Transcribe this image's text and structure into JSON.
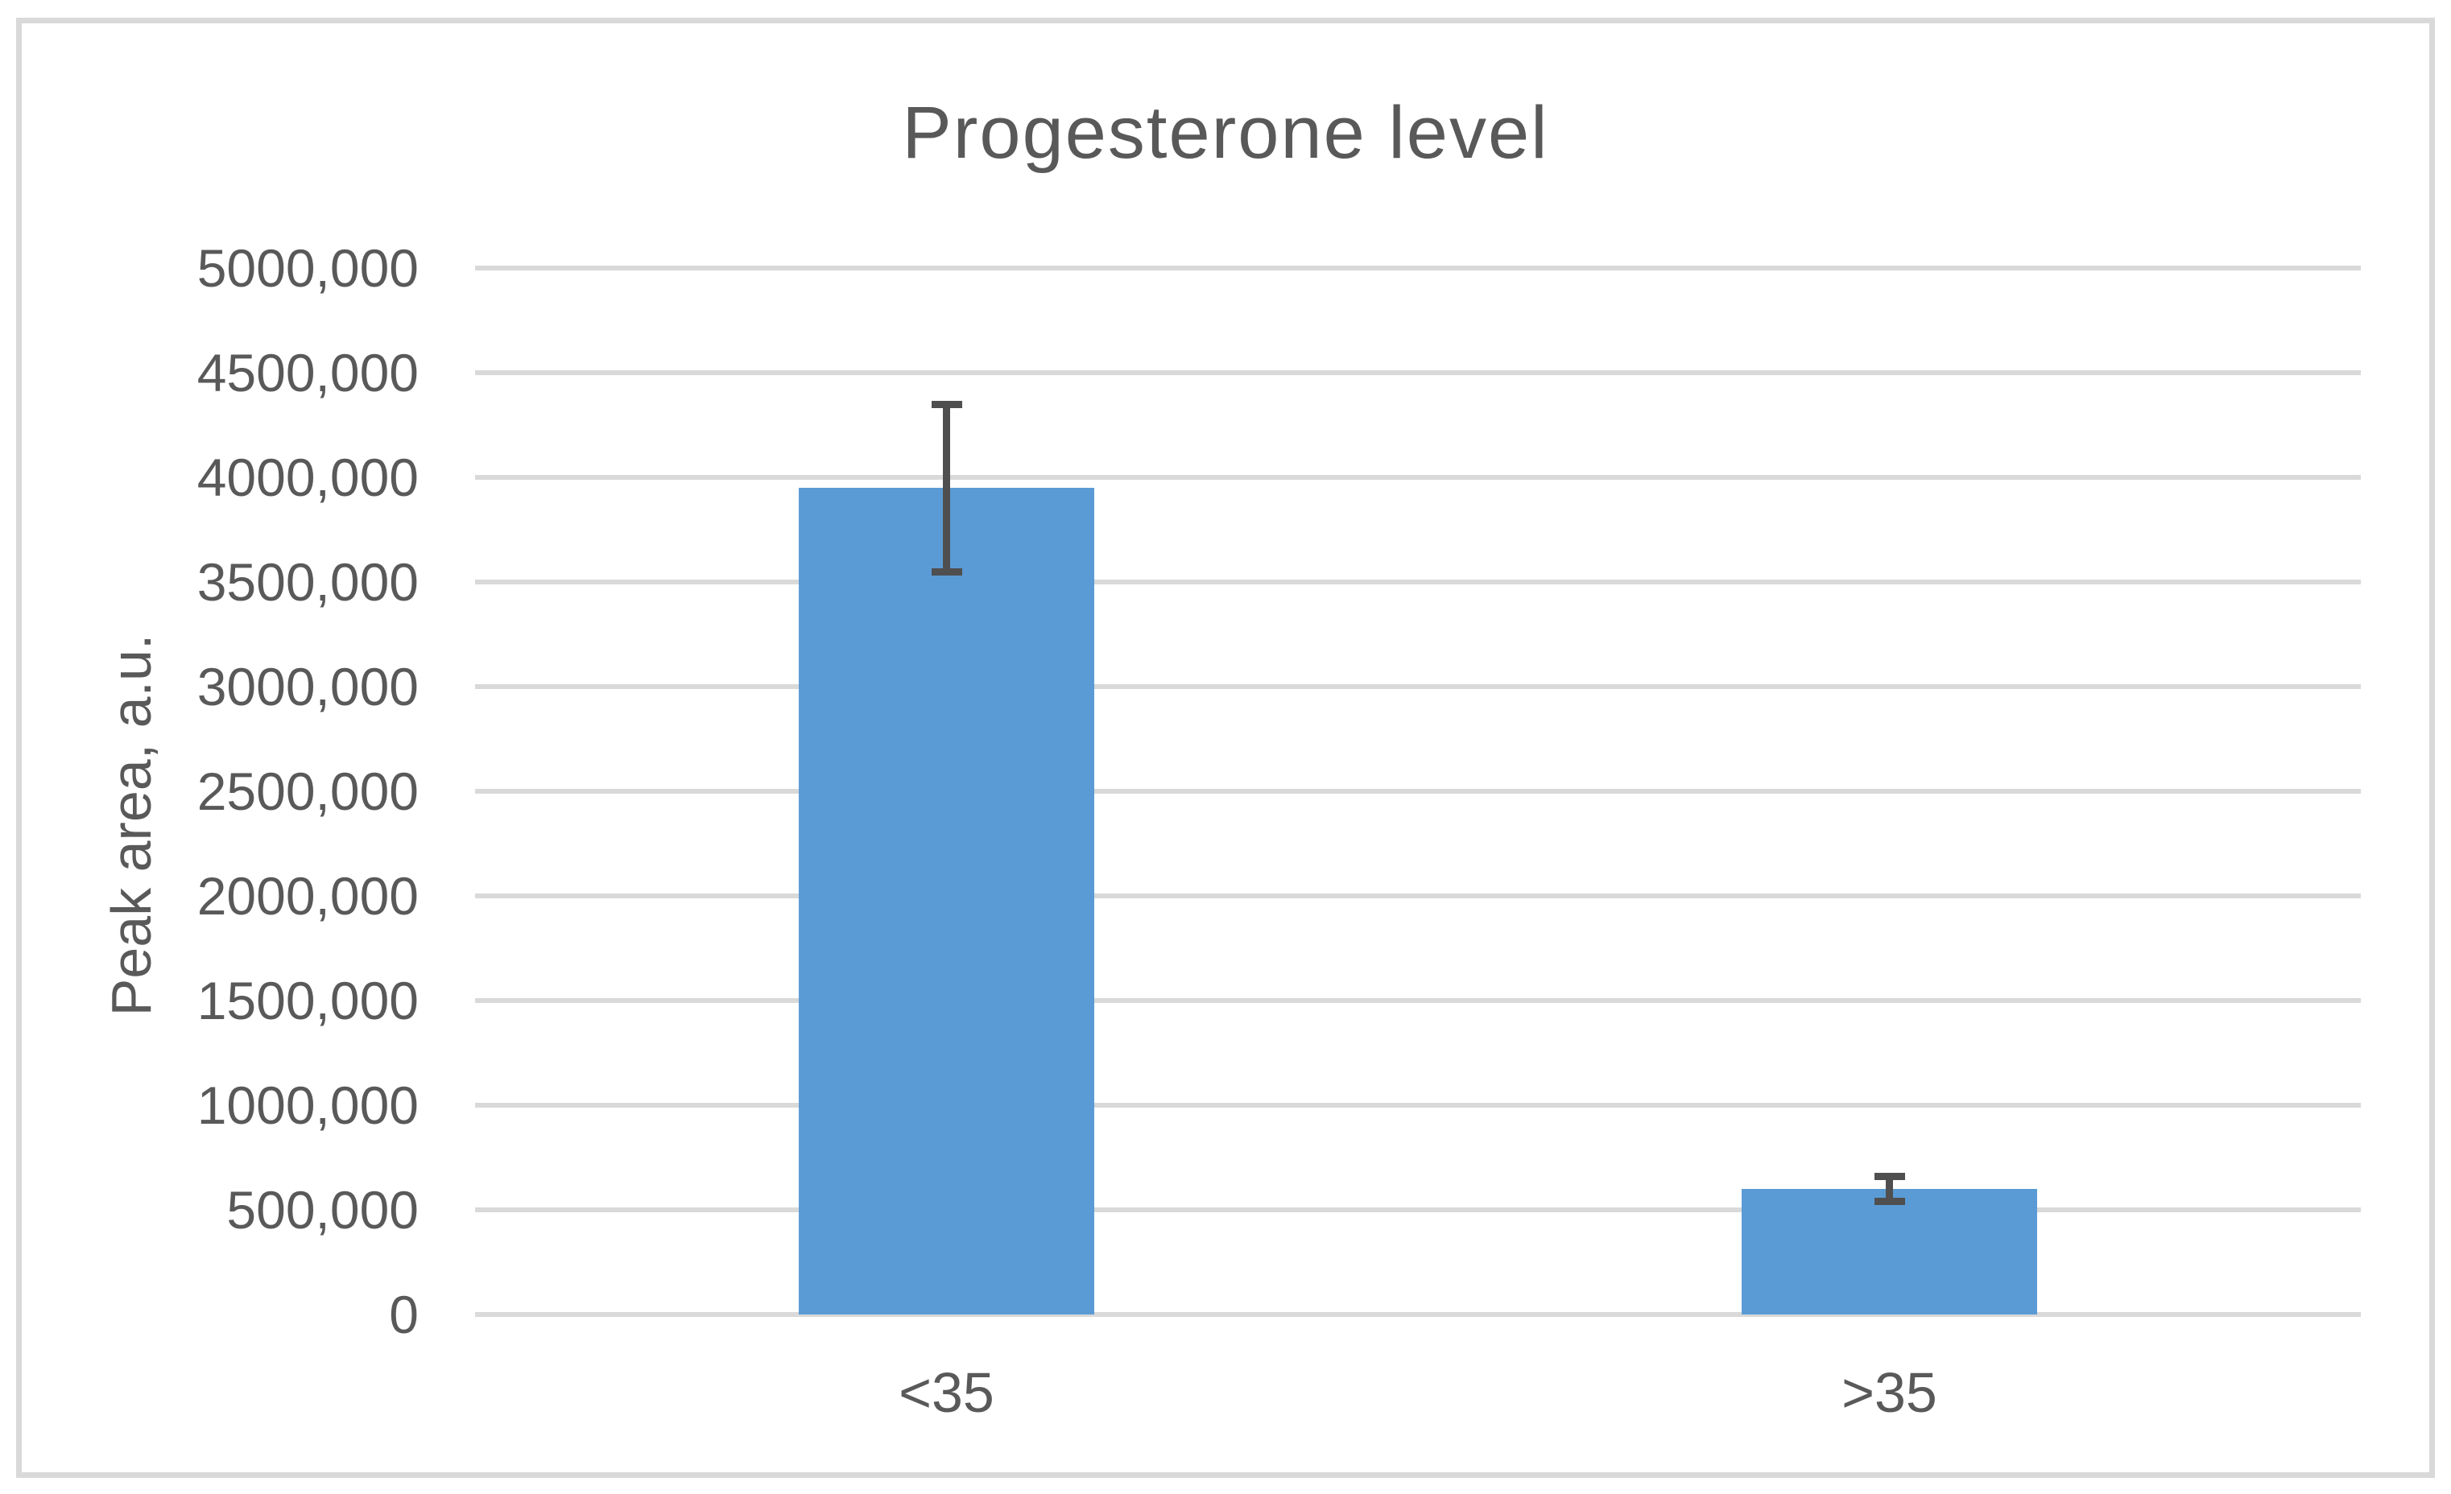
{
  "chart_data": {
    "type": "bar",
    "title": "Progesterone level",
    "xlabel": "",
    "ylabel": "Peak area, a.u.",
    "categories": [
      "<35",
      ">35"
    ],
    "series": [
      {
        "values": [
          3950000,
          600000
        ],
        "errors": [
          400000,
          60000
        ]
      }
    ],
    "ylim": [
      0,
      5000000
    ],
    "y_tick_step": 500000,
    "y_tick_labels": [
      "0",
      "500,000",
      "1000,000",
      "1500,000",
      "2000,000",
      "2500,000",
      "3000,000",
      "3500,000",
      "4000,000",
      "4500,000",
      "5000,000"
    ],
    "grid": true,
    "legend": false,
    "error_bars": true,
    "colors": {
      "bar_fill": "#5b9bd5",
      "error_bar": "#4f4f4f",
      "text": "#595959",
      "gridline": "#d9d9d9",
      "frame_border": "#d9d9d9",
      "background": "#ffffff"
    }
  }
}
